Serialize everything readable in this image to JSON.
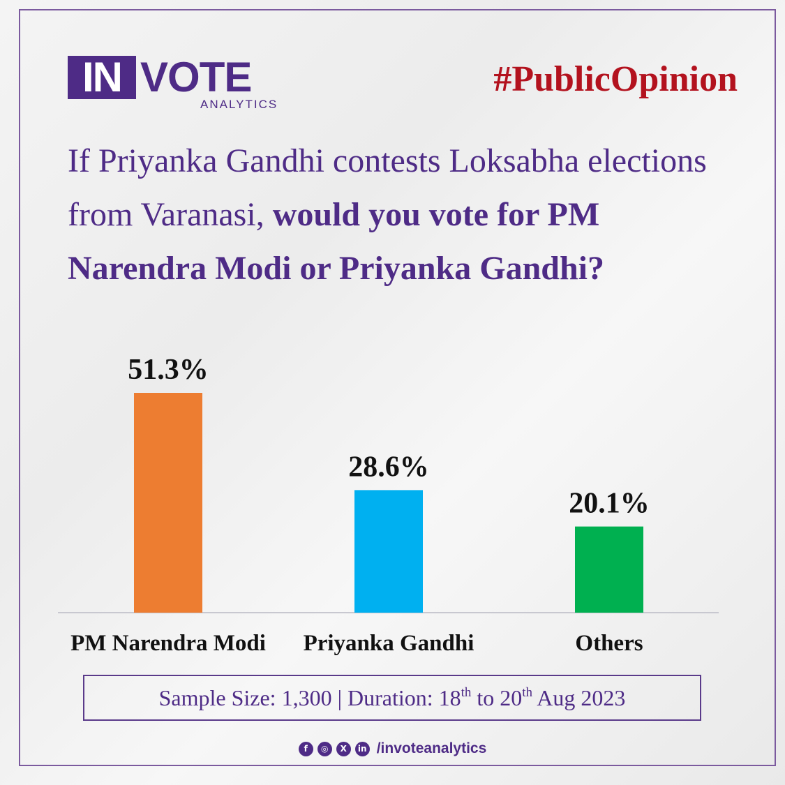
{
  "brand": {
    "logo_in": "IN",
    "logo_vote": "VOTE",
    "logo_sub": "ANALYTICS",
    "color": "#4e2b86"
  },
  "hashtag": "#PublicOpinion",
  "question": {
    "regular": "If Priyanka Gandhi contests Loksabha elections from Varanasi, ",
    "bold": "would you vote for PM Narendra Modi or Priyanka Gandhi?"
  },
  "chart_data": {
    "type": "bar",
    "categories": [
      "PM Narendra Modi",
      "Priyanka Gandhi",
      "Others"
    ],
    "values": [
      51.3,
      28.6,
      20.1
    ],
    "value_labels": [
      "51.3%",
      "28.6%",
      "20.1%"
    ],
    "colors": [
      "#ed7d31",
      "#00b0f0",
      "#00b050"
    ],
    "title": "",
    "xlabel": "",
    "ylabel": "",
    "ylim": [
      0,
      51.3
    ],
    "grid": false,
    "legend": "none"
  },
  "footer_info": {
    "sample_label": "Sample Size: 1,300",
    "separator": "|",
    "duration_label": "Duration: 18",
    "sup1": "th",
    "to": "to 20",
    "sup2": "th",
    "end": "Aug 2023"
  },
  "social": {
    "icons": [
      "facebook-icon",
      "instagram-icon",
      "x-icon",
      "linkedin-icon"
    ],
    "glyphs": [
      "f",
      "◎",
      "X",
      "in"
    ],
    "handle": "/invoteanalytics"
  }
}
